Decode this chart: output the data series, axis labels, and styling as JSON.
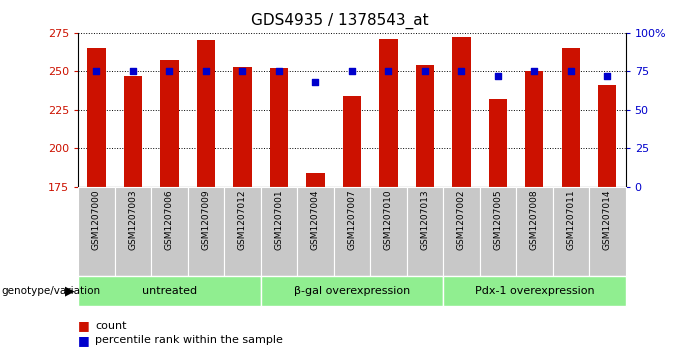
{
  "title": "GDS4935 / 1378543_at",
  "samples": [
    "GSM1207000",
    "GSM1207003",
    "GSM1207006",
    "GSM1207009",
    "GSM1207012",
    "GSM1207001",
    "GSM1207004",
    "GSM1207007",
    "GSM1207010",
    "GSM1207013",
    "GSM1207002",
    "GSM1207005",
    "GSM1207008",
    "GSM1207011",
    "GSM1207014"
  ],
  "counts": [
    265,
    247,
    257,
    270,
    253,
    252,
    184,
    234,
    271,
    254,
    272,
    232,
    250,
    265,
    241
  ],
  "percentiles": [
    75,
    75,
    75,
    75,
    75,
    75,
    68,
    75,
    75,
    75,
    75,
    72,
    75,
    75,
    72
  ],
  "groups": [
    {
      "label": "untreated",
      "start": 0,
      "end": 5
    },
    {
      "label": "β-gal overexpression",
      "start": 5,
      "end": 10
    },
    {
      "label": "Pdx-1 overexpression",
      "start": 10,
      "end": 15
    }
  ],
  "ylim_left": [
    175,
    275
  ],
  "ylim_right": [
    0,
    100
  ],
  "yticks_left": [
    175,
    200,
    225,
    250,
    275
  ],
  "yticks_right": [
    0,
    25,
    50,
    75,
    100
  ],
  "ytick_labels_right": [
    "0",
    "25",
    "50",
    "75",
    "100%"
  ],
  "bar_color": "#cc1100",
  "dot_color": "#0000cc",
  "group_bg_color": "#90ee90",
  "sample_bg_color": "#c8c8c8",
  "grid_color": "#000000",
  "title_color": "#000000",
  "left_tick_color": "#cc1100",
  "right_tick_color": "#0000cc",
  "bar_width": 0.5,
  "legend_count_label": "count",
  "legend_pct_label": "percentile rank within the sample"
}
